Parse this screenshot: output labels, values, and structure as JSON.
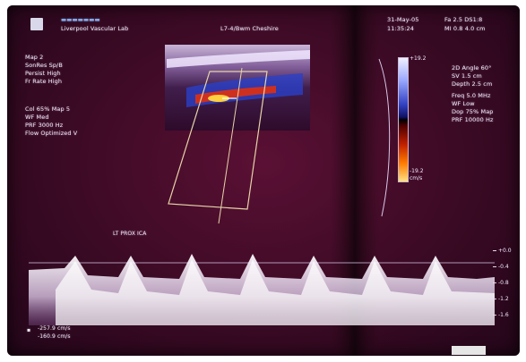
{
  "header": {
    "logo": "",
    "institution": "Liverpool Vascular Lab",
    "probe": "L7-4/Bwm Cheshire",
    "date": "31-May-05",
    "time": "11:35:24",
    "fr": "Fa 2.5 DS1:8",
    "mi": "MI 0.8  4.0 cm"
  },
  "left_panel": [
    "Map 2",
    "SonRes Sp/B",
    "Persist High",
    "Fr Rate High",
    "",
    "Col 65% Map 5",
    "WF Med",
    "PRF 3000 Hz",
    "Flow Optimized V"
  ],
  "right_panel": [
    "2D Angle 60°",
    "SV 1.5 cm",
    "Depth 2.5 cm",
    "Freq 5.0 MHz",
    "WF Low",
    "Dop 75% Map",
    "PRF 10000 Hz"
  ],
  "center_label": "LT PROX ICA",
  "colorbar_labels": [
    "+19.2",
    "-19.2",
    "cm/s"
  ],
  "velocity_scale": [
    "+0.0",
    "-0.4",
    "-0.8",
    "-1.2",
    "-1.6"
  ],
  "bottom_left": [
    "-257.9 cm/s",
    "-160.9 cm/s"
  ],
  "bottom_right": "",
  "colors": {
    "background": "#3b0a24",
    "text": "#f3e9ff",
    "waveform": "#ffffff"
  }
}
